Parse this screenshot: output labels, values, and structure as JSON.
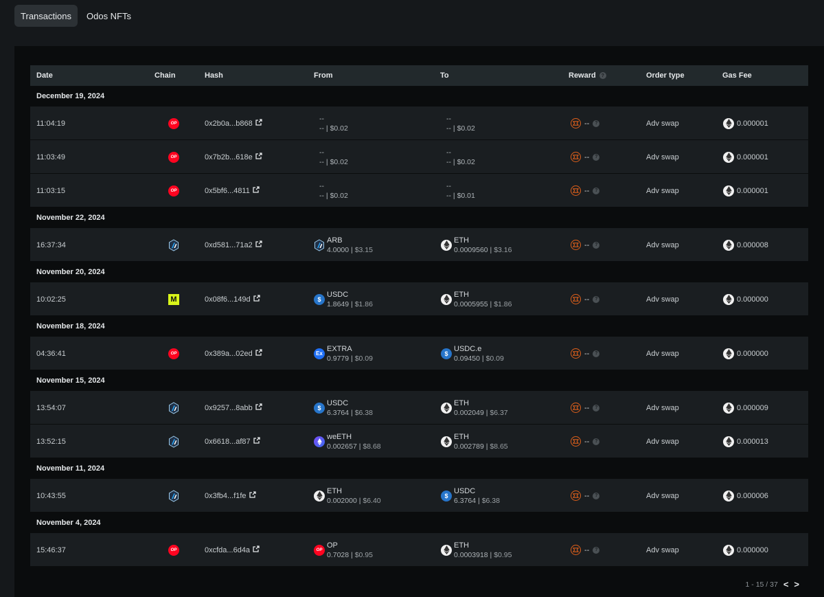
{
  "tabs": [
    {
      "label": "Transactions",
      "active": true
    },
    {
      "label": "Odos NFTs",
      "active": false
    }
  ],
  "table": {
    "headers": {
      "date": "Date",
      "chain": "Chain",
      "hash": "Hash",
      "from": "From",
      "to": "To",
      "reward": "Reward",
      "order_type": "Order type",
      "gas_fee": "Gas Fee"
    },
    "groups": [
      {
        "date": "December 19, 2024",
        "rows": [
          {
            "time": "11:04:19",
            "chain": "op",
            "hash": "0x2b0a...b868",
            "from": {
              "token": "--",
              "amount": "--",
              "usd": "$0.02",
              "icon": null
            },
            "to": {
              "token": "--",
              "amount": "--",
              "usd": "$0.02",
              "icon": null
            },
            "reward": "--",
            "order_type": "Adv swap",
            "gas": "0.000001"
          },
          {
            "time": "11:03:49",
            "chain": "op",
            "hash": "0x7b2b...618e",
            "from": {
              "token": "--",
              "amount": "--",
              "usd": "$0.02",
              "icon": null
            },
            "to": {
              "token": "--",
              "amount": "--",
              "usd": "$0.02",
              "icon": null
            },
            "reward": "--",
            "order_type": "Adv swap",
            "gas": "0.000001"
          },
          {
            "time": "11:03:15",
            "chain": "op",
            "hash": "0x5bf6...4811",
            "from": {
              "token": "--",
              "amount": "--",
              "usd": "$0.02",
              "icon": null
            },
            "to": {
              "token": "--",
              "amount": "--",
              "usd": "$0.01",
              "icon": null
            },
            "reward": "--",
            "order_type": "Adv swap",
            "gas": "0.000001"
          }
        ]
      },
      {
        "date": "November 22, 2024",
        "rows": [
          {
            "time": "16:37:34",
            "chain": "arb",
            "hash": "0xd581...71a2",
            "from": {
              "token": "ARB",
              "amount": "4.0000",
              "usd": "$3.15",
              "icon": "arb"
            },
            "to": {
              "token": "ETH",
              "amount": "0.0009560",
              "usd": "$3.16",
              "icon": "eth"
            },
            "reward": "--",
            "order_type": "Adv swap",
            "gas": "0.000008"
          }
        ]
      },
      {
        "date": "November 20, 2024",
        "rows": [
          {
            "time": "10:02:25",
            "chain": "mode",
            "hash": "0x08f6...149d",
            "from": {
              "token": "USDC",
              "amount": "1.8649",
              "usd": "$1.86",
              "icon": "usdc"
            },
            "to": {
              "token": "ETH",
              "amount": "0.0005955",
              "usd": "$1.86",
              "icon": "eth"
            },
            "reward": "--",
            "order_type": "Adv swap",
            "gas": "0.000000"
          }
        ]
      },
      {
        "date": "November 18, 2024",
        "rows": [
          {
            "time": "04:36:41",
            "chain": "op",
            "hash": "0x389a...02ed",
            "from": {
              "token": "EXTRA",
              "amount": "0.9779",
              "usd": "$0.09",
              "icon": "extra"
            },
            "to": {
              "token": "USDC.e",
              "amount": "0.09450",
              "usd": "$0.09",
              "icon": "usdc"
            },
            "reward": "--",
            "order_type": "Adv swap",
            "gas": "0.000000"
          }
        ]
      },
      {
        "date": "November 15, 2024",
        "rows": [
          {
            "time": "13:54:07",
            "chain": "arb",
            "hash": "0x9257...8abb",
            "from": {
              "token": "USDC",
              "amount": "6.3764",
              "usd": "$6.38",
              "icon": "usdc"
            },
            "to": {
              "token": "ETH",
              "amount": "0.002049",
              "usd": "$6.37",
              "icon": "eth"
            },
            "reward": "--",
            "order_type": "Adv swap",
            "gas": "0.000009"
          },
          {
            "time": "13:52:15",
            "chain": "arb",
            "hash": "0x6618...af87",
            "from": {
              "token": "weETH",
              "amount": "0.002657",
              "usd": "$8.68",
              "icon": "weeth"
            },
            "to": {
              "token": "ETH",
              "amount": "0.002789",
              "usd": "$8.65",
              "icon": "eth"
            },
            "reward": "--",
            "order_type": "Adv swap",
            "gas": "0.000013"
          }
        ]
      },
      {
        "date": "November 11, 2024",
        "rows": [
          {
            "time": "10:43:55",
            "chain": "arb",
            "hash": "0x3fb4...f1fe",
            "from": {
              "token": "ETH",
              "amount": "0.002000",
              "usd": "$6.40",
              "icon": "eth"
            },
            "to": {
              "token": "USDC",
              "amount": "6.3764",
              "usd": "$6.38",
              "icon": "usdc"
            },
            "reward": "--",
            "order_type": "Adv swap",
            "gas": "0.000006"
          }
        ]
      },
      {
        "date": "November 4, 2024",
        "rows": [
          {
            "time": "15:46:37",
            "chain": "op",
            "hash": "0xcfda...6d4a",
            "from": {
              "token": "OP",
              "amount": "0.7028",
              "usd": "$0.95",
              "icon": "op"
            },
            "to": {
              "token": "ETH",
              "amount": "0.0003918",
              "usd": "$0.95",
              "icon": "eth"
            },
            "reward": "--",
            "order_type": "Adv swap",
            "gas": "0.000000"
          }
        ]
      }
    ]
  },
  "pagination": {
    "range": "1 - 15 / 37",
    "prev": "<",
    "next": ">"
  },
  "colors": {
    "op": "#ff0420",
    "mode": "#d8f51a",
    "usdc": "#2775ca",
    "reward": "#e0601b"
  }
}
